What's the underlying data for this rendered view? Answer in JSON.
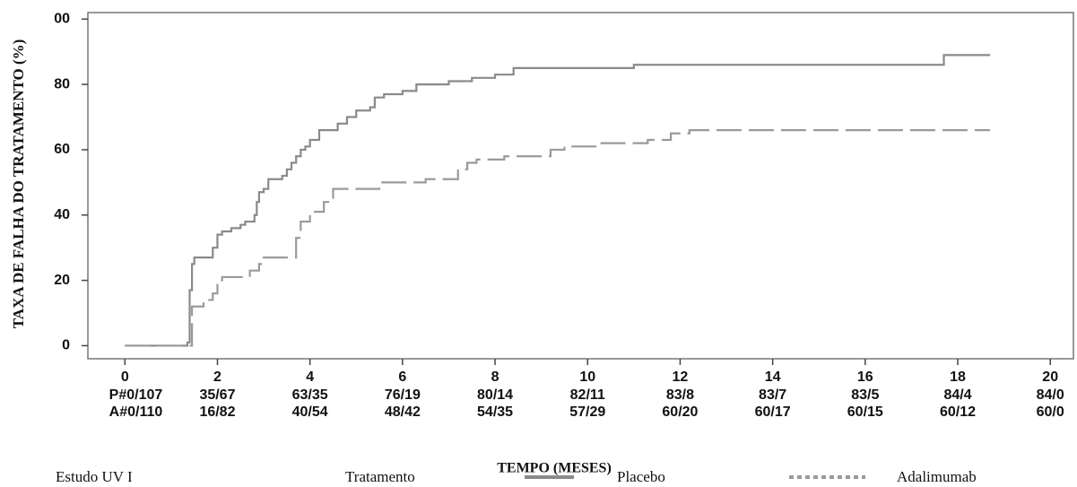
{
  "chart_data": {
    "type": "line",
    "step": true,
    "y_label": "TAXA DE FALHA DO TRATAMENTO (%)",
    "x_label": "TEMPO (MESES)",
    "xlim": [
      -0.8,
      20.5
    ],
    "ylim": [
      -4,
      102
    ],
    "xticks": [
      0,
      2,
      4,
      6,
      8,
      10,
      12,
      14,
      16,
      18,
      20
    ],
    "yticks": [
      0,
      20,
      40,
      60,
      80,
      {
        "value": 100,
        "label": "00"
      }
    ],
    "risk_table": [
      [
        "P#0/107",
        "35/67",
        "63/35",
        "76/19",
        "80/14",
        "82/11",
        "83/8",
        "83/7",
        "83/5",
        "84/4",
        "84/0"
      ],
      [
        "A#0/110",
        "16/82",
        "40/54",
        "48/42",
        "54/35",
        "57/29",
        "60/20",
        "60/17",
        "60/15",
        "60/12",
        "60/0"
      ]
    ],
    "footnote": "Estudo UV I",
    "legend_title": "Tratamento",
    "series": [
      {
        "name": "Placebo",
        "color": "#8a8a8a",
        "dashed": false,
        "x": [
          0,
          1.3,
          1.35,
          1.4,
          1.45,
          1.5,
          1.9,
          2.0,
          2.1,
          2.3,
          2.5,
          2.6,
          2.8,
          2.85,
          2.9,
          3.0,
          3.1,
          3.4,
          3.5,
          3.6,
          3.7,
          3.8,
          3.9,
          4.0,
          4.2,
          4.6,
          4.8,
          5.0,
          5.3,
          5.4,
          5.6,
          6.0,
          6.3,
          7.0,
          7.5,
          8.0,
          8.4,
          11.0,
          17.7,
          18.7
        ],
        "values": [
          0,
          0,
          1,
          17,
          25,
          27,
          30,
          34,
          35,
          36,
          37,
          38,
          40,
          44,
          47,
          48,
          51,
          52,
          54,
          56,
          58,
          60,
          61,
          63,
          66,
          68,
          70,
          72,
          73,
          76,
          77,
          78,
          80,
          81,
          82,
          83,
          85,
          86,
          89,
          89
        ]
      },
      {
        "name": "Adalimumab",
        "color": "#9a9a9a",
        "dashed": true,
        "x": [
          0,
          1.4,
          1.45,
          1.7,
          1.9,
          2.0,
          2.1,
          2.7,
          2.9,
          3.0,
          3.7,
          3.8,
          4.0,
          4.3,
          4.5,
          5.5,
          6.5,
          7.2,
          7.4,
          7.6,
          8.2,
          9.2,
          9.5,
          10.3,
          11.3,
          11.8,
          12.2,
          18.7
        ],
        "values": [
          0,
          0,
          12,
          14,
          16,
          19,
          21,
          23,
          25,
          27,
          33,
          38,
          41,
          44,
          48,
          50,
          51,
          54,
          56,
          57,
          58,
          60,
          61,
          62,
          63,
          65,
          66,
          66
        ]
      }
    ]
  }
}
